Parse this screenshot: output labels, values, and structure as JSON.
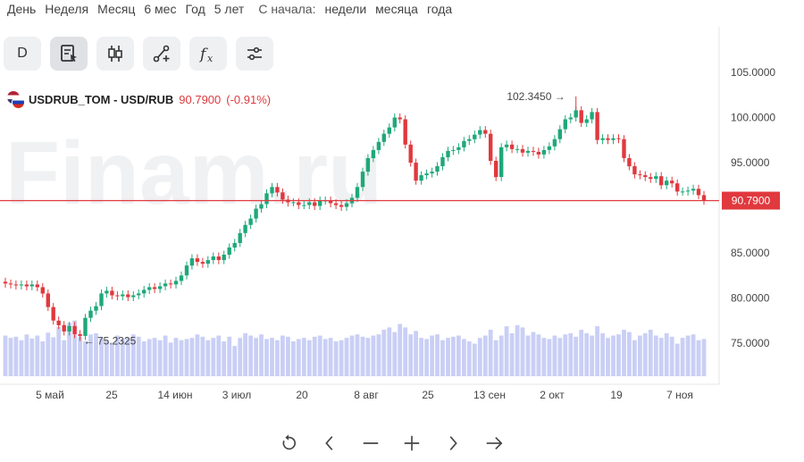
{
  "periods": [
    "День",
    "Неделя",
    "Месяц",
    "6 мес",
    "Год",
    "5 лет"
  ],
  "since_label": "С начала:",
  "since_periods": [
    "недели",
    "месяца",
    "года"
  ],
  "toolbar": {
    "interval_label": "D",
    "tools": [
      "notes-cursor-icon",
      "candlestick-icon",
      "trendline-icon",
      "indicator-fx-icon",
      "settings-sliders-icon"
    ]
  },
  "ticker": {
    "name": "USDRUB_TOM - USD/RUB",
    "price": "90.7900",
    "change": "(-0.91%)"
  },
  "watermark": "Finam.ru",
  "colors": {
    "up": "#1fa87a",
    "down": "#e0393e",
    "volume": "#c9cff5",
    "price_line": "#e0393e"
  },
  "chart_data": {
    "type": "candlestick",
    "y_axis": {
      "ticks": [
        75,
        80,
        85,
        90,
        95,
        100,
        105
      ],
      "tick_labels": [
        "75.0000",
        "80.0000",
        "85.0000",
        "",
        "95.0000",
        "100.0000",
        "105.0000"
      ]
    },
    "x_axis": {
      "tick_labels": [
        "5 май",
        "25",
        "14 июн",
        "3 июл",
        "20",
        "8 авг",
        "25",
        "13 сен",
        "2 окт",
        "19",
        "7 ноя"
      ]
    },
    "last_price": 90.79,
    "last_price_label": "90.7900",
    "annotations": {
      "high": {
        "value": 102.345,
        "label": "102.3450"
      },
      "low": {
        "value": 75.2325,
        "label": "75.2325"
      }
    },
    "closes": [
      81.6,
      81.5,
      81.4,
      81.5,
      81.3,
      81.5,
      81.2,
      80.5,
      79.0,
      77.5,
      77.0,
      76.3,
      76.9,
      76.0,
      75.8,
      77.8,
      78.6,
      79.1,
      80.5,
      80.8,
      80.3,
      80.2,
      80.4,
      80.1,
      80.3,
      80.5,
      80.9,
      81.2,
      81.0,
      81.3,
      81.6,
      81.5,
      81.9,
      82.5,
      83.6,
      84.4,
      84.0,
      83.8,
      84.2,
      84.6,
      84.2,
      84.8,
      85.6,
      86.1,
      87.2,
      88.1,
      88.8,
      89.9,
      90.4,
      91.6,
      92.3,
      91.7,
      90.9,
      90.6,
      90.6,
      90.3,
      90.3,
      90.6,
      90.2,
      90.8,
      90.8,
      90.5,
      90.3,
      90.1,
      90.5,
      91.1,
      92.3,
      94.0,
      95.5,
      96.4,
      97.3,
      98.2,
      98.9,
      100.0,
      99.8,
      97.0,
      95.0,
      93.0,
      93.6,
      93.8,
      94.0,
      94.6,
      95.6,
      96.3,
      96.4,
      96.7,
      97.4,
      97.6,
      98.1,
      98.6,
      98.2,
      95.2,
      93.4,
      96.7,
      97.0,
      96.5,
      96.5,
      96.1,
      96.3,
      96.2,
      95.9,
      96.4,
      96.8,
      97.6,
      98.7,
      99.8,
      100.0,
      100.8,
      99.4,
      99.8,
      100.6,
      97.5,
      97.7,
      97.5,
      97.7,
      97.6,
      95.5,
      94.6,
      93.7,
      93.6,
      93.4,
      93.2,
      93.5,
      92.5,
      93.0,
      92.7,
      91.8,
      91.8,
      91.9,
      92.1,
      91.4,
      90.8
    ],
    "volume": {
      "range": [
        0,
        100
      ],
      "values": [
        70,
        66,
        68,
        62,
        72,
        65,
        70,
        60,
        75,
        67,
        85,
        62,
        92,
        96,
        68,
        60,
        72,
        74,
        66,
        62,
        58,
        70,
        64,
        66,
        72,
        68,
        60,
        64,
        66,
        62,
        70,
        58,
        66,
        62,
        64,
        66,
        72,
        68,
        62,
        66,
        70,
        60,
        68,
        52,
        66,
        74,
        70,
        66,
        72,
        64,
        66,
        62,
        70,
        68,
        60,
        64,
        66,
        62,
        68,
        70,
        64,
        66,
        60,
        62,
        66,
        70,
        72,
        68,
        66,
        70,
        72,
        80,
        84,
        76,
        90,
        84,
        72,
        78,
        66,
        64,
        70,
        72,
        62,
        66,
        68,
        70,
        64,
        60,
        56,
        66,
        70,
        80,
        62,
        70,
        86,
        74,
        88,
        84,
        70,
        76,
        72,
        66,
        64,
        70,
        66,
        72,
        74,
        68,
        80,
        74,
        70,
        86,
        74,
        66,
        70,
        72,
        80,
        76,
        62,
        70,
        74,
        80,
        70,
        66,
        74,
        68,
        56,
        66,
        70,
        72,
        62,
        64
      ]
    }
  }
}
